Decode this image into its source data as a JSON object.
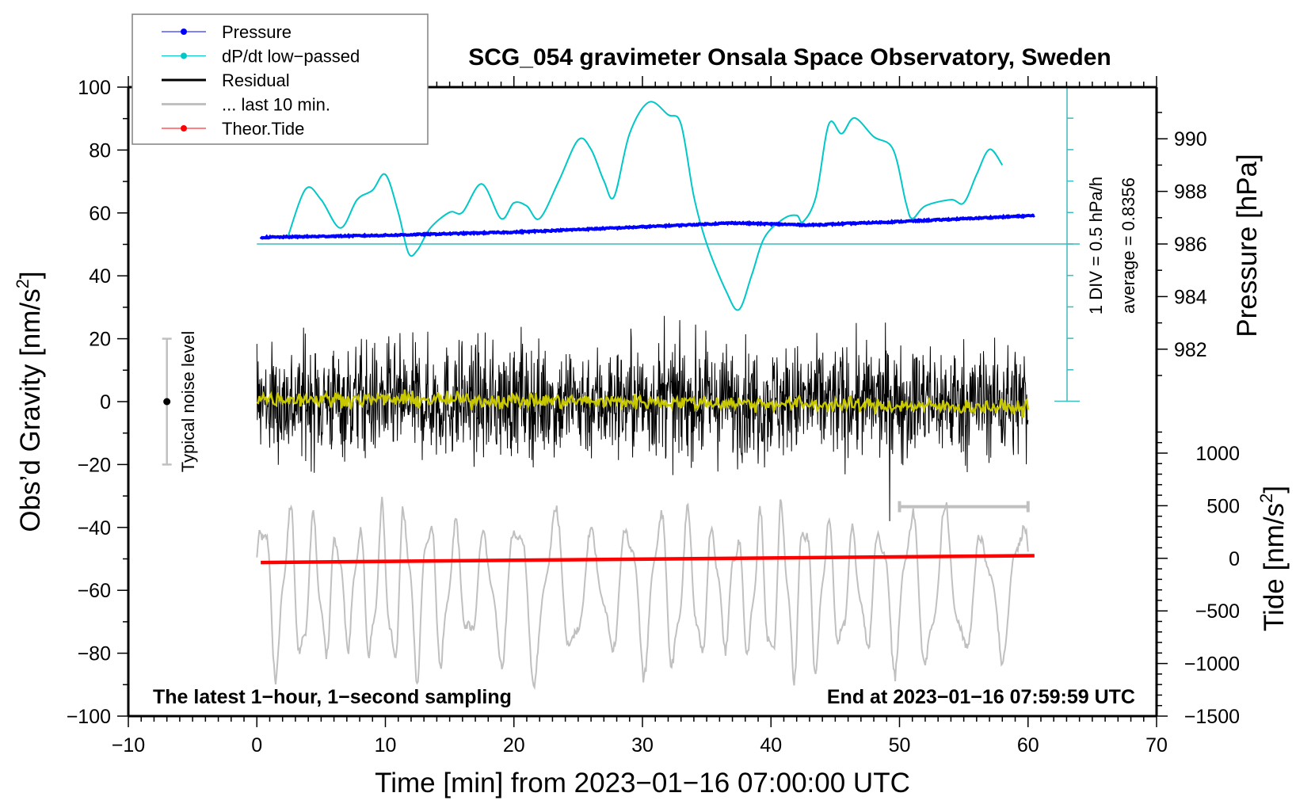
{
  "chart_data": {
    "type": "line",
    "title": "SCG_054 gravimeter Onsala Space Observatory, Sweden",
    "xlabel": "Time [min] from 2023−01−16 07:00:00 UTC",
    "ylabel_left": "Obs’d Gravity [nm/s",
    "ylabel_left_sup": "2",
    "ylabel_left_end": "]",
    "ylabel_pressure": "Pressure [hPa]",
    "ylabel_tide": "Tide [nm/s",
    "ylabel_tide_sup": "2",
    "ylabel_tide_end": "]",
    "xlim": [
      -10,
      70
    ],
    "ylim_left": [
      -100,
      100
    ],
    "pressure_range": [
      980,
      992
    ],
    "tide_range": [
      -1500,
      1500
    ],
    "x_ticks": [
      "−10",
      "0",
      "10",
      "20",
      "30",
      "40",
      "50",
      "60",
      "70"
    ],
    "y_ticks_left": [
      "−100",
      "−80",
      "−60",
      "−40",
      "−20",
      "0",
      "20",
      "40",
      "60",
      "80",
      "100"
    ],
    "y_ticks_pressure": [
      "982",
      "984",
      "986",
      "988",
      "990"
    ],
    "y_ticks_tide": [
      "−1500",
      "−1000",
      "−500",
      "0",
      "500",
      "1000"
    ],
    "legend": {
      "placement": "top-left",
      "entries": [
        {
          "label": "Pressure",
          "color": "#0000ff",
          "marker": true
        },
        {
          "label": "dP/dt low−passed",
          "color": "#00c8c8",
          "marker": true
        },
        {
          "label": "Residual",
          "color": "#000000",
          "marker": false
        },
        {
          "label": "... last 10 min.",
          "color": "#c0c0c0",
          "marker": false
        },
        {
          "label": "Theor.Tide",
          "color": "#ff0000",
          "marker": true
        }
      ]
    },
    "dpdt_scale": {
      "label": "1 DIV = 0.5 hPa/h",
      "average_label": "average = 0.8356",
      "average": 0.8356,
      "div": 0.5
    },
    "annotations": {
      "noise_label": "Typical noise level",
      "noise_level": [
        -20,
        20
      ],
      "left_note": "The latest 1−hour, 1−second sampling",
      "right_note": "End at 2023−01−16 07:59:59 UTC",
      "last10_range_min": [
        50,
        60
      ]
    },
    "series": [
      {
        "name": "Pressure",
        "unit": "hPa",
        "color": "#0000ff",
        "x": [
          0.3,
          10,
          20,
          30,
          37,
          43,
          50,
          60.5
        ],
        "y": [
          986.25,
          986.33,
          986.45,
          986.65,
          986.8,
          986.72,
          986.85,
          987.08
        ]
      },
      {
        "name": "dP/dt low-passed",
        "unit": "hPa/h",
        "color": "#00c8c8",
        "x": [
          2.4,
          3.8,
          5.0,
          6.5,
          7.8,
          9.0,
          10.0,
          11.0,
          11.8,
          12.5,
          13.5,
          15,
          16,
          17.5,
          19,
          20,
          21,
          22,
          23.5,
          25,
          26,
          27,
          27.8,
          29,
          30.5,
          32,
          33,
          34,
          35,
          36.5,
          37.5,
          38.5,
          39.5,
          41,
          42,
          42.5,
          43.5,
          44.5,
          45.5,
          46.5,
          48,
          49.5,
          50.5,
          51,
          52,
          54,
          55,
          56,
          57,
          58
        ],
        "y": [
          0.94,
          1.71,
          1.54,
          1.09,
          1.54,
          1.69,
          1.94,
          1.34,
          0.69,
          0.74,
          1.09,
          1.34,
          1.34,
          1.79,
          1.24,
          1.49,
          1.44,
          1.24,
          1.84,
          2.49,
          2.34,
          1.84,
          1.59,
          2.59,
          3.09,
          2.89,
          2.74,
          1.59,
          0.84,
          0.09,
          -0.21,
          0.34,
          0.94,
          1.24,
          1.29,
          1.19,
          1.59,
          2.74,
          2.59,
          2.84,
          2.54,
          2.34,
          1.49,
          1.24,
          1.44,
          1.54,
          1.49,
          1.94,
          2.34,
          2.09
        ]
      },
      {
        "name": "Residual",
        "unit": "nm/s2",
        "color": "#000000",
        "x_range": [
          0,
          60
        ],
        "std": 9,
        "max_abs": 38
      },
      {
        "name": "Residual smoothed",
        "unit": "nm/s2",
        "color": "#c8c800",
        "x": [
          0,
          30,
          60
        ],
        "y": [
          1,
          0,
          -2
        ]
      },
      {
        "name": "... last 10 min.",
        "unit": "nm/s2",
        "color": "#c0c0c0",
        "x_range": [
          0,
          60
        ],
        "offset": -60,
        "amplitude": 20
      },
      {
        "name": "Theor.Tide",
        "unit": "nm/s2",
        "color": "#ff0000",
        "x": [
          0.3,
          60.5
        ],
        "y": [
          -40,
          25
        ]
      }
    ]
  }
}
